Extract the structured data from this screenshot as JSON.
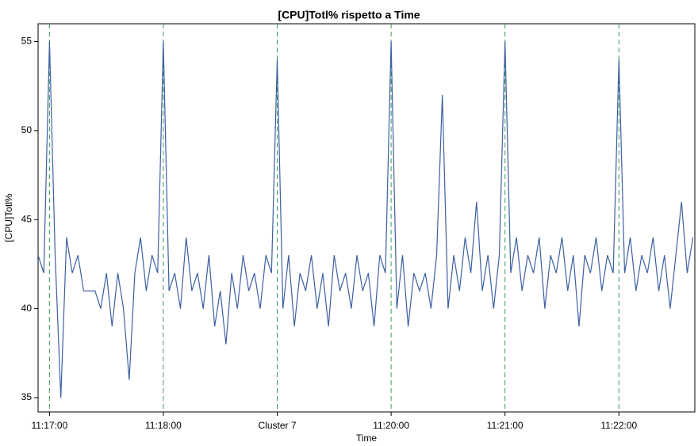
{
  "chart_data": {
    "type": "line",
    "title": "[CPU]Totl% rispetto a Time",
    "x_label": "Time",
    "y_label": "[CPU]Totl%",
    "x": [
      "11:16:54",
      "11:16:57",
      "11:17:00",
      "11:17:03",
      "11:17:06",
      "11:17:09",
      "11:17:12",
      "11:17:15",
      "11:17:18",
      "11:17:21",
      "11:17:24",
      "11:17:27",
      "11:17:30",
      "11:17:33",
      "11:17:36",
      "11:17:39",
      "11:17:42",
      "11:17:45",
      "11:17:48",
      "11:17:51",
      "11:17:54",
      "11:17:57",
      "11:18:00",
      "11:18:03",
      "11:18:06",
      "11:18:09",
      "11:18:12",
      "11:18:15",
      "11:18:18",
      "11:18:21",
      "11:18:24",
      "11:18:27",
      "11:18:30",
      "11:18:33",
      "11:18:36",
      "11:18:39",
      "11:18:42",
      "11:18:45",
      "11:18:48",
      "11:18:51",
      "11:18:54",
      "11:18:57",
      "11:19:00",
      "11:19:03",
      "11:19:06",
      "11:19:09",
      "11:19:12",
      "11:19:15",
      "11:19:18",
      "11:19:21",
      "11:19:24",
      "11:19:27",
      "11:19:30",
      "11:19:33",
      "11:19:36",
      "11:19:39",
      "11:19:42",
      "11:19:45",
      "11:19:48",
      "11:19:51",
      "11:19:54",
      "11:19:57",
      "11:20:00",
      "11:20:03",
      "11:20:06",
      "11:20:09",
      "11:20:12",
      "11:20:15",
      "11:20:18",
      "11:20:21",
      "11:20:24",
      "11:20:27",
      "11:20:30",
      "11:20:33",
      "11:20:36",
      "11:20:39",
      "11:20:42",
      "11:20:45",
      "11:20:48",
      "11:20:51",
      "11:20:54",
      "11:20:57",
      "11:21:00",
      "11:21:03",
      "11:21:06",
      "11:21:09",
      "11:21:12",
      "11:21:15",
      "11:21:18",
      "11:21:21",
      "11:21:24",
      "11:21:27",
      "11:21:30",
      "11:21:33",
      "11:21:36",
      "11:21:39",
      "11:21:42",
      "11:21:45",
      "11:21:48",
      "11:21:51",
      "11:21:54",
      "11:21:57",
      "11:22:00",
      "11:22:03",
      "11:22:06",
      "11:22:09",
      "11:22:12",
      "11:22:15",
      "11:22:18",
      "11:22:21",
      "11:22:24",
      "11:22:27",
      "11:22:30",
      "11:22:33",
      "11:22:36",
      "11:22:39"
    ],
    "series": [
      {
        "name": "[CPU]Totl%",
        "color": "#3d5fa3",
        "values": [
          43,
          42,
          55,
          43,
          35,
          44,
          42,
          43,
          41,
          41,
          41,
          40,
          42,
          39,
          42,
          40,
          36,
          42,
          44,
          41,
          43,
          42,
          55,
          41,
          42,
          40,
          44,
          41,
          42,
          40,
          43,
          39,
          41,
          38,
          42,
          40,
          43,
          41,
          42,
          40,
          43,
          42,
          54,
          40,
          43,
          39,
          42,
          41,
          43,
          40,
          42,
          39,
          43,
          41,
          42,
          40,
          43,
          41,
          42,
          39,
          43,
          42,
          55,
          40,
          43,
          39,
          42,
          41,
          42,
          40,
          43,
          52,
          40,
          43,
          41,
          44,
          42,
          46,
          41,
          43,
          40,
          43,
          55,
          42,
          44,
          41,
          43,
          42,
          44,
          40,
          43,
          42,
          44,
          41,
          43,
          39,
          43,
          42,
          44,
          41,
          43,
          42,
          54,
          42,
          44,
          41,
          43,
          42,
          44,
          41,
          43,
          40,
          43,
          46,
          42,
          44
        ]
      }
    ],
    "xlim": [
      "11:16:54",
      "11:22:40"
    ],
    "xticks": [
      "11:17:00",
      "11:18:00",
      {
        "value": "11:19:00",
        "label": "Cluster 7"
      },
      "11:20:00",
      "11:21:00",
      "11:22:00"
    ],
    "ylim": [
      34.2,
      56
    ],
    "yticks": [
      35,
      40,
      45,
      50,
      55
    ],
    "grid": true,
    "grid_color": "#3a9a5a"
  }
}
